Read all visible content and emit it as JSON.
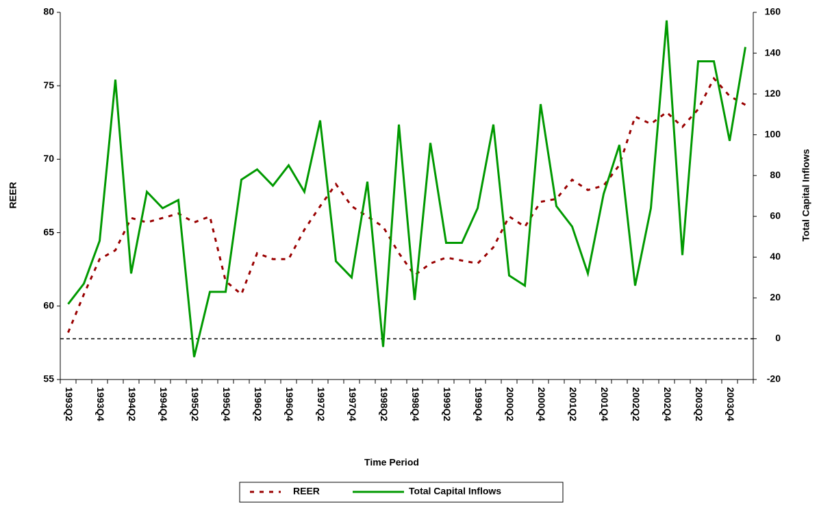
{
  "chart_data": {
    "type": "line",
    "x_label": "Time Period",
    "y_label": "REER",
    "y2_label": "Total Capital Inflows",
    "categories": [
      "1993Q2",
      null,
      "1993Q4",
      null,
      "1994Q2",
      null,
      "1994Q4",
      null,
      "1995Q2",
      null,
      "1995Q4",
      null,
      "1996Q2",
      null,
      "1996Q4",
      null,
      "1997Q2",
      null,
      "1997Q4",
      null,
      "1998Q2",
      null,
      "1998Q4",
      null,
      "1999Q2",
      null,
      "1999Q4",
      null,
      "2000Q2",
      null,
      "2000Q4",
      null,
      "2001Q2",
      null,
      "2001Q4",
      null,
      "2002Q2",
      null,
      "2002Q4",
      null,
      "2003Q2",
      null,
      "2003Q4",
      null
    ],
    "series": [
      {
        "name": "REER",
        "color": "#990000",
        "dashed": true,
        "axis": "y",
        "values": [
          58.2,
          60.8,
          63.2,
          63.8,
          66.0,
          65.7,
          66.0,
          66.3,
          65.7,
          66.1,
          61.7,
          60.8,
          63.6,
          63.2,
          63.2,
          65.2,
          66.8,
          68.3,
          66.8,
          66.1,
          65.4,
          63.6,
          62.1,
          62.9,
          63.3,
          63.1,
          62.9,
          64.0,
          66.1,
          65.4,
          67.1,
          67.3,
          68.6,
          67.9,
          68.2,
          69.6,
          72.9,
          72.4,
          73.2,
          72.2,
          73.4,
          75.5,
          74.3,
          73.7
        ]
      },
      {
        "name": "Total Capital Inflows",
        "color": "#009900",
        "dashed": false,
        "axis": "y2",
        "values": [
          17,
          27,
          48,
          127,
          32,
          72,
          64,
          68,
          -9,
          23,
          23,
          78,
          83,
          75,
          85,
          72,
          107,
          38,
          30,
          77,
          -4,
          105,
          19,
          96,
          47,
          47,
          64,
          105,
          31,
          26,
          115,
          65,
          55,
          32,
          71,
          95,
          26,
          64,
          156,
          41,
          136,
          136,
          97,
          143
        ]
      }
    ],
    "ylim": [
      55,
      80
    ],
    "yticks": [
      55,
      60,
      65,
      70,
      75,
      80
    ],
    "y2lim": [
      -20,
      160
    ],
    "y2ticks": [
      -20,
      0,
      20,
      40,
      60,
      80,
      100,
      120,
      140,
      160
    ],
    "zero_line": true,
    "grid": false,
    "legend": "bottom"
  }
}
